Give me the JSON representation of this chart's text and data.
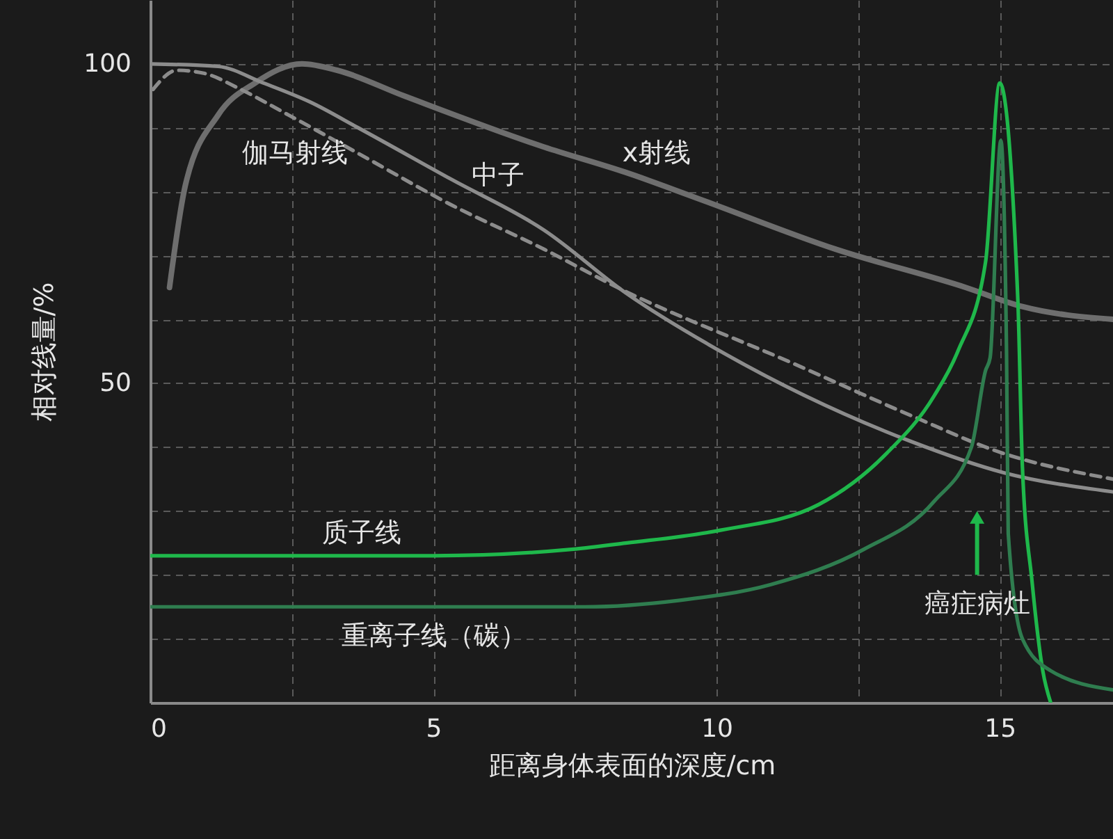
{
  "chart_data": {
    "type": "line",
    "xlabel": "距离身体表面的深度/cm",
    "ylabel": "相对线量/%",
    "xlim": [
      0,
      17
    ],
    "ylim": [
      0,
      110
    ],
    "xticks": [
      0,
      {
        "value": 2.5,
        "label": null
      },
      5,
      {
        "value": 7.5,
        "label": null
      },
      10,
      {
        "value": 12.5,
        "label": null
      },
      15
    ],
    "yticks": [
      {
        "value": 0,
        "label": null
      },
      {
        "value": 10,
        "label": null
      },
      {
        "value": 20,
        "label": null
      },
      {
        "value": 30,
        "label": null
      },
      {
        "value": 40,
        "label": null
      },
      50,
      {
        "value": 60,
        "label": null
      },
      {
        "value": 70,
        "label": null
      },
      {
        "value": 80,
        "label": null
      },
      {
        "value": 90,
        "label": null
      },
      100
    ],
    "grid": true,
    "marker": "none",
    "series": [
      {
        "name": "x射线",
        "color": "#6e6e6e",
        "line_style": "solid",
        "x": [
          0.34,
          0.62,
          1.2,
          1.85,
          2.68,
          3.3,
          4.48,
          6.95,
          8.4,
          9.65,
          12.1,
          14.4,
          15.4,
          17.0
        ],
        "values": [
          65,
          81,
          92,
          97,
          100,
          99,
          95,
          87,
          83,
          79,
          71,
          65,
          62,
          60
        ]
      },
      {
        "name": "中子",
        "color": "#8c8c8c",
        "line_style": "solid",
        "x": [
          0,
          1.2,
          2.0,
          2.83,
          3.67,
          5.3,
          6.95,
          8.42,
          10.07,
          13.4,
          15.07,
          17.0
        ],
        "values": [
          100,
          99.6,
          97,
          94,
          90,
          82,
          74,
          64,
          55,
          41,
          36,
          33
        ]
      },
      {
        "name": "伽马射线",
        "color": "#8c8c8c",
        "line_style": "dashed",
        "x": [
          0.05,
          0.47,
          0.96,
          1.6,
          2.44,
          3.67,
          5.3,
          6.95,
          8.25,
          11.38,
          13.42,
          15.07,
          17.0
        ],
        "values": [
          96,
          99,
          98.5,
          96,
          92,
          86,
          78,
          71,
          65,
          53,
          45,
          39,
          35
        ]
      },
      {
        "name": "质子线",
        "color": "#1fb84b",
        "line_style": "solid",
        "x": [
          0,
          5,
          7.44,
          8.42,
          10.07,
          11.8,
          13.0,
          13.84,
          14.26,
          14.75,
          15.0,
          15.32,
          15.4,
          15.57,
          15.76,
          15.9
        ],
        "values": [
          23,
          23,
          24,
          25,
          27,
          31,
          39,
          48,
          55,
          69,
          97,
          63,
          37,
          19,
          5,
          0
        ]
      },
      {
        "name": "重离子线（碳）",
        "color": "#2f7d4f",
        "line_style": "solid",
        "x": [
          0,
          7.68,
          9.33,
          10.96,
          12.6,
          13.84,
          14.5,
          14.75,
          14.83,
          15.02,
          15.12,
          15.15,
          15.4,
          15.9,
          17.0
        ],
        "values": [
          15,
          15,
          16,
          18.5,
          24,
          31.5,
          40,
          52,
          54,
          88,
          55,
          26.5,
          10,
          5,
          2
        ]
      }
    ],
    "annotations": [
      {
        "text": "癌症病灶",
        "x": 14.6,
        "y": 29
      }
    ]
  }
}
